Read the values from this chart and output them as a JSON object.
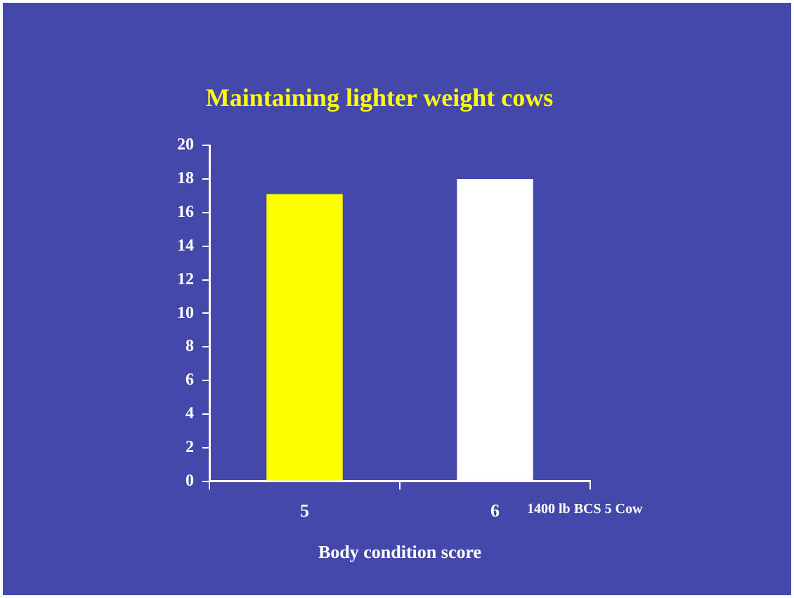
{
  "chart_data": {
    "type": "bar",
    "title": "Maintaining lighter weight cows",
    "xlabel": "Body condition score",
    "categories": [
      "5",
      "6"
    ],
    "values": [
      17.1,
      18.0
    ],
    "colors": [
      "#ffff00",
      "#ffffff"
    ],
    "ylim": [
      0,
      20
    ],
    "yticks": [
      0,
      2,
      4,
      6,
      8,
      10,
      12,
      14,
      16,
      18,
      20
    ],
    "grid": false,
    "legend": false,
    "annotations": [
      "1400 lb BCS 5 Cow"
    ]
  }
}
